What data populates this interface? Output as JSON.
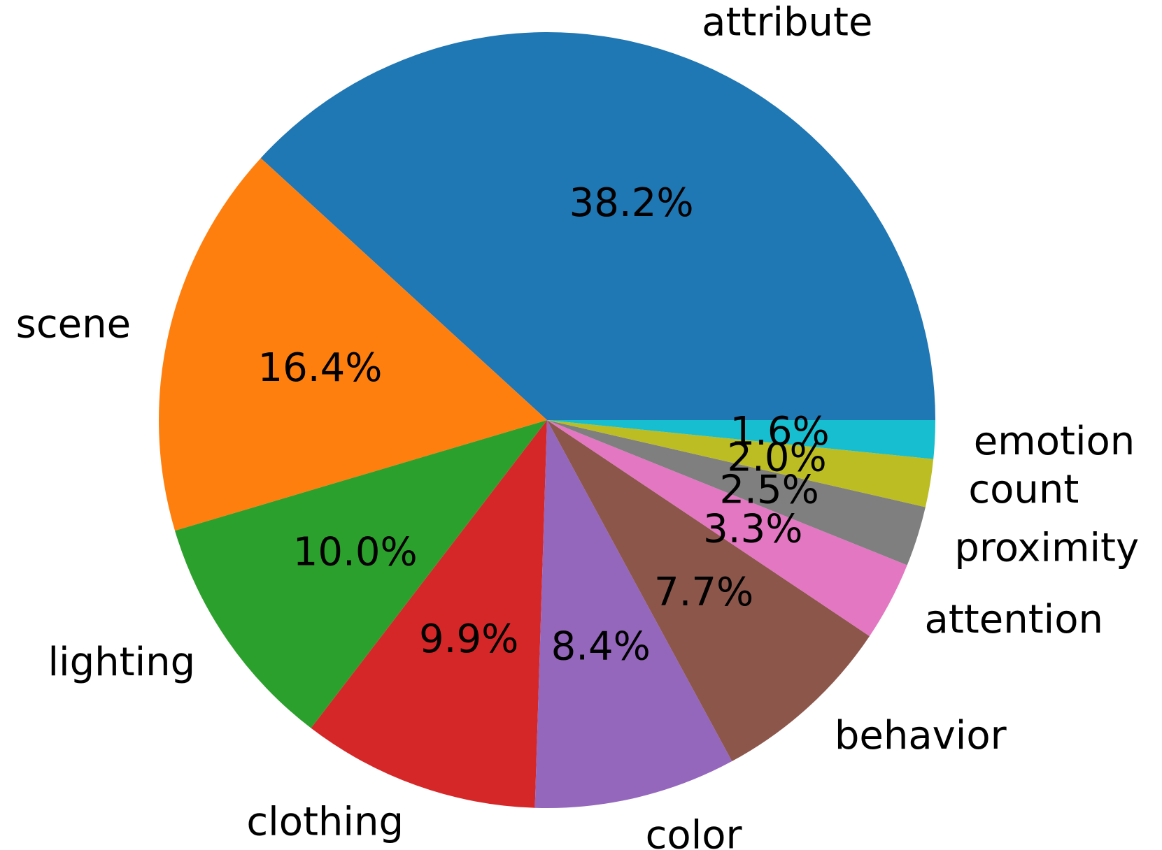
{
  "chart_data": {
    "type": "pie",
    "start_angle_deg": 0,
    "direction": "counterclockwise",
    "slices": [
      {
        "label": "attribute",
        "value": 38.2,
        "pct_text": "38.2%",
        "color": "#1f77b4"
      },
      {
        "label": "scene",
        "value": 16.4,
        "pct_text": "16.4%",
        "color": "#ff7f0e"
      },
      {
        "label": "lighting",
        "value": 10.0,
        "pct_text": "10.0%",
        "color": "#2ca02c"
      },
      {
        "label": "clothing",
        "value": 9.9,
        "pct_text": "9.9%",
        "color": "#d62728"
      },
      {
        "label": "color",
        "value": 8.4,
        "pct_text": "8.4%",
        "color": "#9467bd"
      },
      {
        "label": "behavior",
        "value": 7.7,
        "pct_text": "7.7%",
        "color": "#8c564b"
      },
      {
        "label": "attention",
        "value": 3.3,
        "pct_text": "3.3%",
        "color": "#e377c2"
      },
      {
        "label": "proximity",
        "value": 2.5,
        "pct_text": "2.5%",
        "color": "#7f7f7f"
      },
      {
        "label": "count",
        "value": 2.0,
        "pct_text": "2.0%",
        "color": "#bcbd22"
      },
      {
        "label": "emotion",
        "value": 1.6,
        "pct_text": "1.6%",
        "color": "#17becf"
      }
    ]
  }
}
